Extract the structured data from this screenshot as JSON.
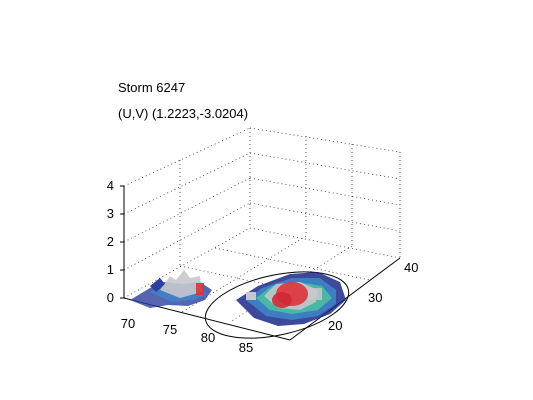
{
  "figure": {
    "title": "Storm 6247",
    "subtitle": "(U,V) (1.2223,-3.0204)"
  },
  "chart_data": {
    "type": "3d-surface",
    "title": "Storm 6247",
    "subtitle": "(U,V) (1.2223,-3.0204)",
    "x_ticks": [
      "70",
      "75",
      "80",
      "85"
    ],
    "y_ticks": [
      "20",
      "30",
      "40"
    ],
    "z_ticks": [
      "0",
      "1",
      "2",
      "3",
      "4"
    ],
    "grid": true,
    "colors": {
      "core": "#e0323c",
      "mid": "#4cc0a0",
      "low": "#3d86c8",
      "edge": "#1b2a8a",
      "iso": "#c8c8cc"
    }
  }
}
